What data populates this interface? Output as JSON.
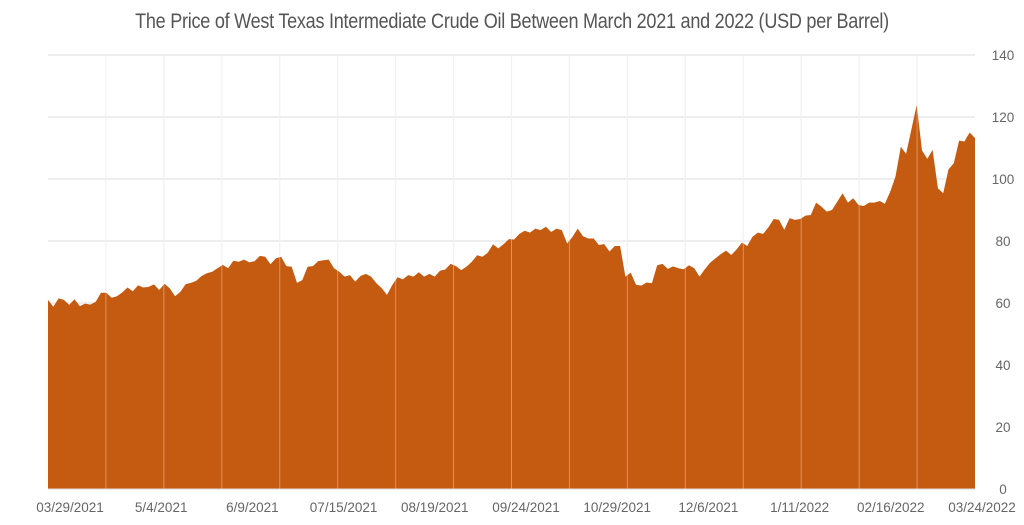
{
  "chart_data": {
    "type": "area",
    "title": "The Price of West Texas Intermediate Crude Oil Between March 2021 and 2022 (USD per Barrel)",
    "xlabel": "",
    "ylabel": "",
    "x_tick_labels": [
      "03/29/2021",
      "5/4/2021",
      "6/9/2021",
      "07/15/2021",
      "08/19/2021",
      "09/24/2021",
      "10/29/2021",
      "12/6/2021",
      "1/11/2022",
      "02/16/2022",
      "03/24/2022"
    ],
    "y_ticks": [
      0,
      20,
      40,
      60,
      80,
      100,
      120,
      140
    ],
    "ylim": [
      0,
      140
    ],
    "y_axis_side": "right",
    "grid": true,
    "legend": "none",
    "color": "#C55A11",
    "values": [
      61,
      58.8,
      61.5,
      61,
      59.4,
      61.2,
      59,
      59.8,
      59.5,
      60.4,
      63.3,
      63.3,
      61.7,
      62.2,
      63.4,
      65,
      63.8,
      65.7,
      65,
      65.2,
      66,
      64.2,
      66.2,
      64.7,
      62.2,
      63.6,
      66.1,
      66.5,
      67.2,
      68.7,
      69.6,
      70.1,
      71.2,
      72.3,
      71.2,
      73.6,
      73.3,
      74,
      73.1,
      73.5,
      75.2,
      74.9,
      72.5,
      74.4,
      74.9,
      71.9,
      71.7,
      66.5,
      67.4,
      71.7,
      71.9,
      73.5,
      73.8,
      74,
      71.2,
      70.1,
      68.5,
      69,
      66.9,
      68.7,
      69.4,
      68.5,
      66.4,
      64.8,
      62.6,
      65.8,
      68.3,
      67.6,
      69,
      68.5,
      69.9,
      68.5,
      69.4,
      68.5,
      70.4,
      70.8,
      72.6,
      71.9,
      70.6,
      71.7,
      73.3,
      75.4,
      74.9,
      76.2,
      78.9,
      77.6,
      79,
      80.6,
      80.5,
      82.3,
      83.3,
      82.7,
      84,
      83.5,
      84.6,
      82.9,
      84,
      83.5,
      79.2,
      81.3,
      84,
      81.5,
      80.8,
      80.8,
      78.7,
      79,
      76.6,
      78.4,
      78.4,
      68.5,
      69.8,
      65.9,
      65.6,
      66.6,
      66.4,
      72.2,
      72.6,
      71,
      71.8,
      71.2,
      70.9,
      72.2,
      71.2,
      68.5,
      70.9,
      73,
      74.4,
      75.7,
      76.9,
      75.5,
      77.3,
      79.5,
      78.4,
      81.4,
      82.7,
      82.3,
      84.4,
      87.1,
      86.8,
      83.6,
      87.4,
      86.8,
      87.1,
      88.2,
      88.4,
      92.4,
      91.1,
      89.5,
      90,
      92.7,
      95.4,
      92.4,
      93.8,
      91.6,
      91.3,
      92.4,
      92.4,
      92.9,
      92,
      95.9,
      100.8,
      110.4,
      108.1,
      116,
      123.9,
      109.2,
      106.5,
      109.4,
      97,
      95.4,
      103.1,
      105.1,
      112.4,
      112.1,
      115,
      113.2
    ]
  }
}
